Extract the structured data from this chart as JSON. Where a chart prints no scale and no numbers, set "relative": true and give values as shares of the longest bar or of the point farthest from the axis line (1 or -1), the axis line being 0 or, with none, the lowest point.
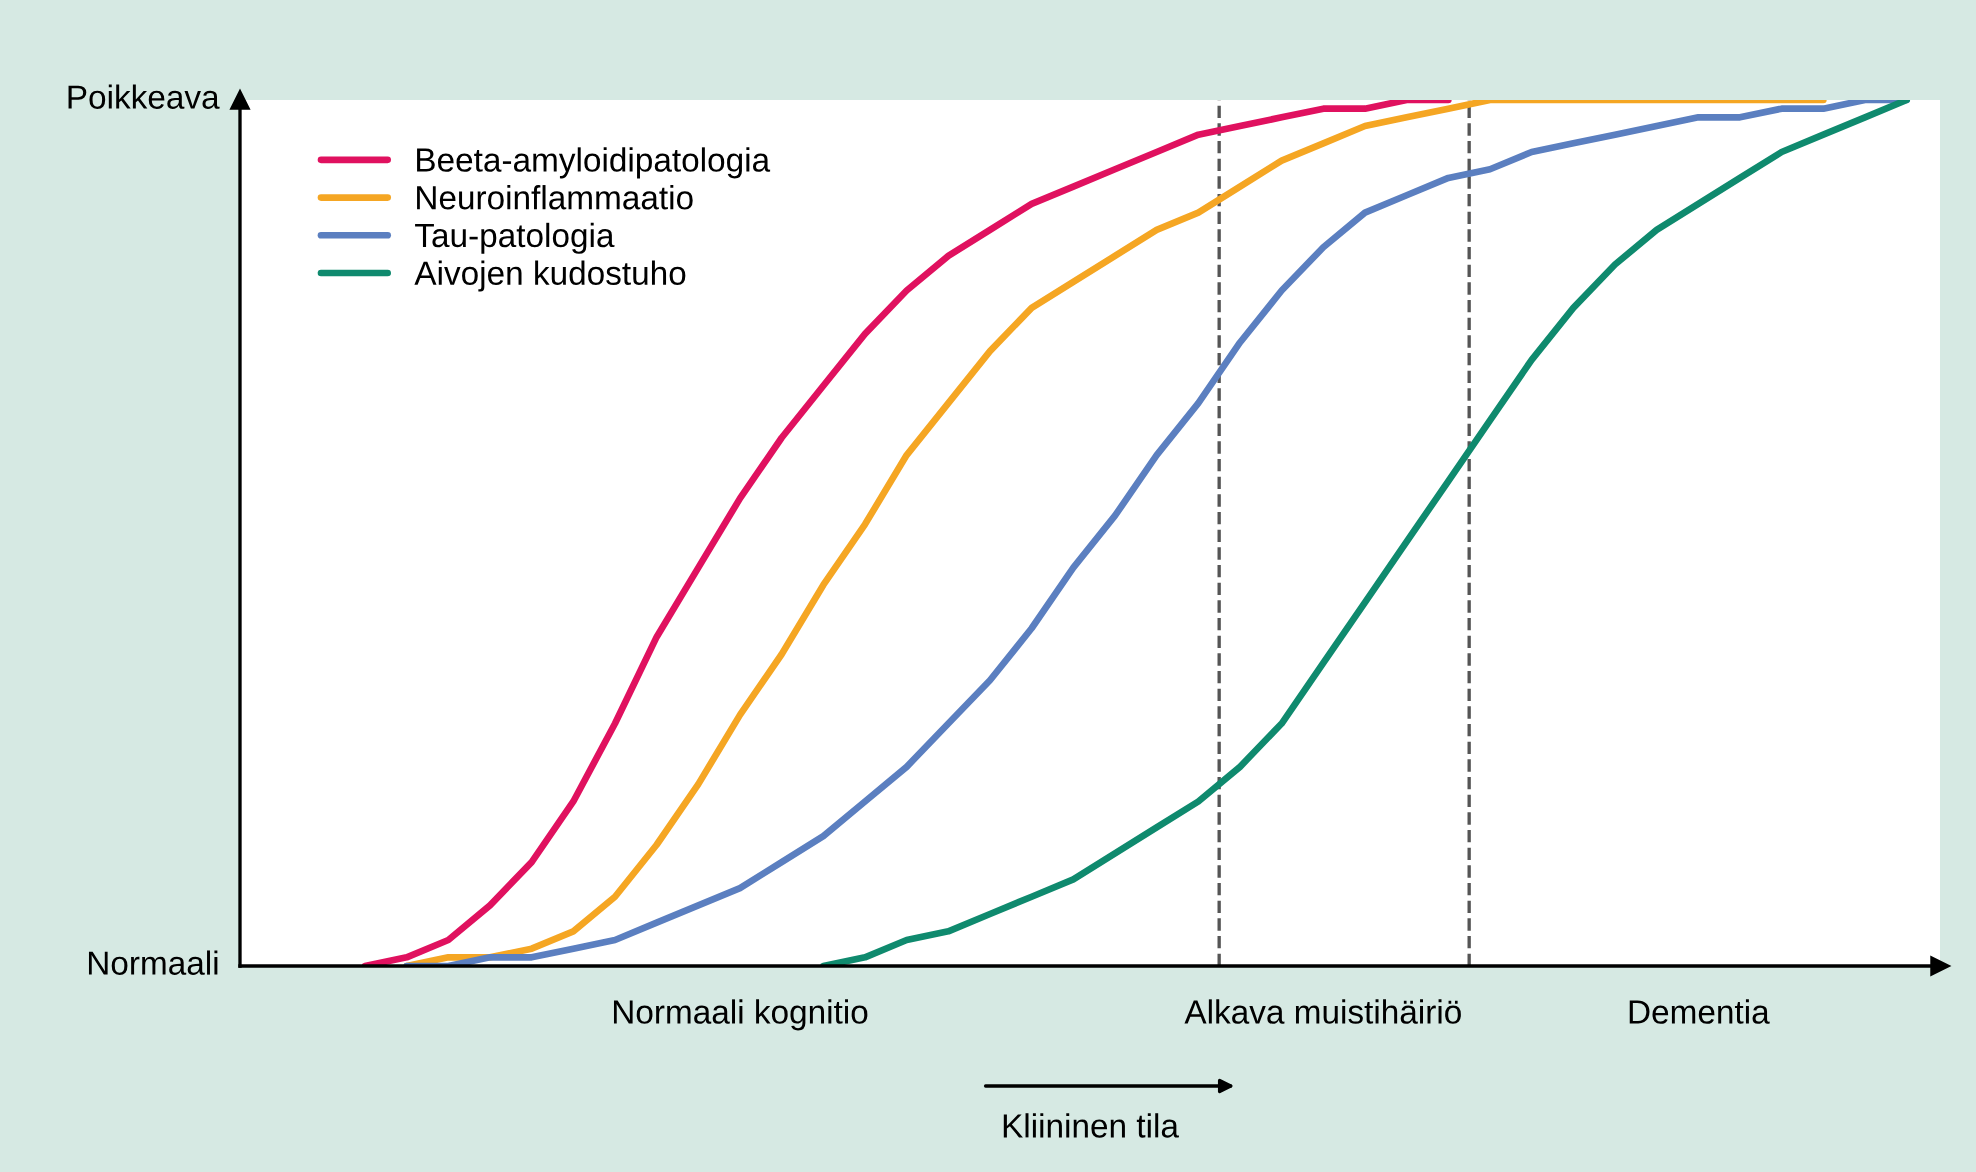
{
  "chart_data": {
    "type": "line",
    "xlabel": "Kliininen tila",
    "relative": true,
    "categories": [
      null,
      null,
      null,
      null,
      null,
      null,
      null,
      null,
      null,
      null,
      null,
      null,
      "Normaali kognitio",
      null,
      null,
      null,
      null,
      null,
      null,
      null,
      null,
      null,
      null,
      null,
      null,
      null,
      "Alkava muistihäiriö",
      null,
      null,
      null,
      null,
      null,
      null,
      null,
      null,
      "Dementia",
      null,
      null,
      null,
      null,
      null
    ],
    "annotations": [
      "Normaali",
      "Poikkeava"
    ],
    "series": [
      {
        "name": "Beeta-amyloidipatologia",
        "color": "#e0115f",
        "values": [
          null,
          null,
          null,
          0,
          0.01,
          0.03,
          0.07,
          0.12,
          0.19,
          0.28,
          0.38,
          0.46,
          0.54,
          0.61,
          0.67,
          0.73,
          0.78,
          0.82,
          0.85,
          0.88,
          0.9,
          0.92,
          0.94,
          0.96,
          0.97,
          0.98,
          0.99,
          0.99,
          1,
          1,
          null,
          null,
          null,
          null,
          null,
          null,
          null,
          null,
          null,
          null,
          null
        ]
      },
      {
        "name": "Neuroinflammaatio",
        "color": "#f5a623",
        "values": [
          null,
          null,
          null,
          null,
          0,
          0.01,
          0.01,
          0.02,
          0.04,
          0.08,
          0.14,
          0.21,
          0.29,
          0.36,
          0.44,
          0.51,
          0.59,
          0.65,
          0.71,
          0.76,
          0.79,
          0.82,
          0.85,
          0.87,
          0.9,
          0.93,
          0.95,
          0.97,
          0.98,
          0.99,
          1,
          1,
          1,
          1,
          1,
          1,
          1,
          1,
          1,
          null,
          null
        ]
      },
      {
        "name": "Tau-patologia",
        "color": "#5b7fc0",
        "values": [
          null,
          null,
          null,
          null,
          0,
          0,
          0.01,
          0.01,
          0.02,
          0.03,
          0.05,
          0.07,
          0.09,
          0.12,
          0.15,
          0.19,
          0.23,
          0.28,
          0.33,
          0.39,
          0.46,
          0.52,
          0.59,
          0.65,
          0.72,
          0.78,
          0.83,
          0.87,
          0.89,
          0.91,
          0.92,
          0.94,
          0.95,
          0.96,
          0.97,
          0.98,
          0.98,
          0.99,
          0.99,
          1,
          1
        ]
      },
      {
        "name": "Aivojen kudostuho",
        "color": "#0f8a6e",
        "values": [
          null,
          null,
          null,
          null,
          null,
          null,
          null,
          null,
          null,
          null,
          null,
          null,
          null,
          null,
          0,
          0.01,
          0.03,
          0.04,
          0.06,
          0.08,
          0.1,
          0.13,
          0.16,
          0.19,
          0.23,
          0.28,
          0.35,
          0.42,
          0.49,
          0.56,
          0.63,
          0.7,
          0.76,
          0.81,
          0.85,
          0.88,
          0.91,
          0.94,
          0.96,
          0.98,
          1
        ]
      }
    ],
    "legend": "top left",
    "grid": false,
    "marker": "none",
    "line_style": "solid"
  }
}
